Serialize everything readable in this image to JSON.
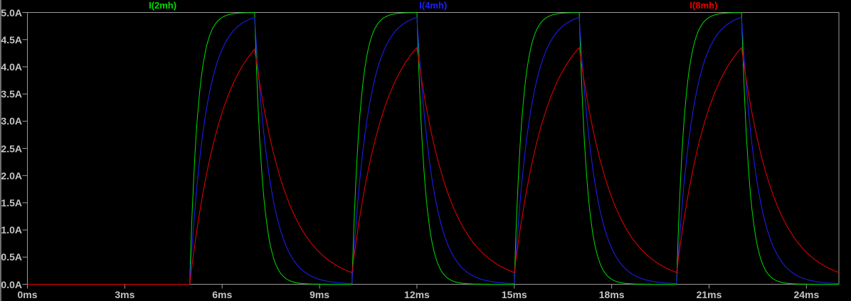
{
  "chart_data": {
    "type": "line",
    "title": "",
    "legend_position": "top",
    "grid": false,
    "background_color": "#000000",
    "axis_color": "#9c9c9c",
    "tick_label_color": "#c4c4c4",
    "x_axis": {
      "unit": "ms",
      "range_ms": [
        0,
        25
      ],
      "tick_values_ms": [
        0,
        3,
        6,
        9,
        12,
        15,
        18,
        21,
        24
      ],
      "tick_labels": [
        "0ms",
        "3ms",
        "6ms",
        "9ms",
        "12ms",
        "15ms",
        "18ms",
        "21ms",
        "24ms"
      ]
    },
    "y_axis": {
      "unit": "A",
      "range_amps": [
        0,
        5
      ],
      "tick_values_amps": [
        0,
        0.5,
        1,
        1.5,
        2,
        2.5,
        3,
        3.5,
        4,
        4.5,
        5
      ],
      "tick_labels": [
        "0.0A",
        "0.5A",
        "1.0A",
        "1.5A",
        "2.0A",
        "2.5A",
        "3.0A",
        "3.5A",
        "4.0A",
        "4.5A",
        "5.0A"
      ]
    },
    "excitation": {
      "type": "pulse-train",
      "on_intervals_ms": [
        [
          5,
          7
        ],
        [
          10,
          12
        ],
        [
          15,
          17
        ],
        [
          20,
          22
        ]
      ],
      "period_ms": 5,
      "pulse_width_ms": 2,
      "steady_state_current_amps": 5.0
    },
    "series": [
      {
        "name": "I(2mh)",
        "color": "#00dd00",
        "time_constant_ms": 0.25,
        "peak_amps": 5.0,
        "residual_amps": 0.0
      },
      {
        "name": "I(4mh)",
        "color": "#1f1fff",
        "time_constant_ms": 0.5,
        "peak_amps": 4.91,
        "residual_amps": 0.02
      },
      {
        "name": "I(8mh)",
        "color": "#ee0000",
        "time_constant_ms": 1.0,
        "peak_amps": 4.35,
        "residual_amps": 0.22
      }
    ]
  }
}
